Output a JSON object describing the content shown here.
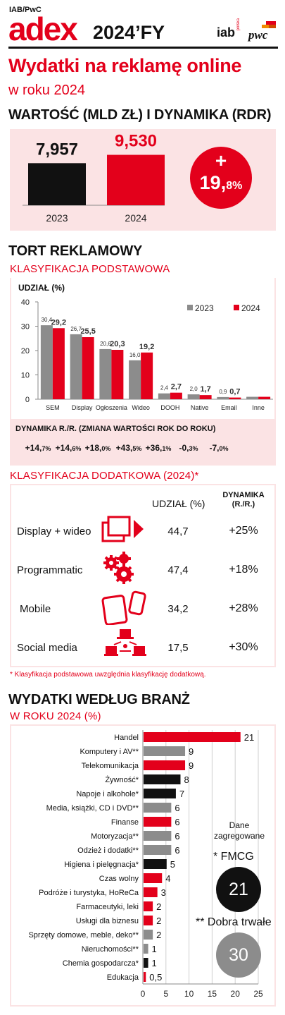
{
  "header": {
    "source": "IAB/PwC",
    "logo_a": "adex",
    "year": "2024’FY",
    "iab_logo": "iab",
    "iab_sub": "polska",
    "pwc_logo": "pwc"
  },
  "title": "Wydatki na reklamę online",
  "subtitle": "w roku 2024",
  "value_section": {
    "title": "WARTOŚĆ (MLD ZŁ) I DYNAMIKA (RDR)",
    "badge_plus": "+",
    "badge_int": "19,",
    "badge_dec": "8%"
  },
  "pie_section": {
    "title": "TORT REKLAMOWY",
    "subtitle": "KLASYFIKACJA PODSTAWOWA",
    "dyn_title": "DYNAMIKA R./R. (ZMIANA WARTOŚCI ROK DO ROKU)",
    "dynamics": [
      {
        "int": "+14,",
        "dec": "7%"
      },
      {
        "int": "+14,",
        "dec": "6%"
      },
      {
        "int": "+18,",
        "dec": "0%"
      },
      {
        "int": "+43,",
        "dec": "5%"
      },
      {
        "int": "+36,",
        "dec": "1%"
      },
      {
        "int": "-0,",
        "dec": "3%"
      },
      {
        "int": "-7,",
        "dec": "0%"
      }
    ]
  },
  "additional": {
    "title": "KLASYFIKACJA DODATKOWA (2024)*",
    "col_share": "UDZIAŁ (%)",
    "col_dyn_1": "DYNAMIKA",
    "col_dyn_2": "(R./R.)",
    "rows": [
      {
        "label": "Display + wideo",
        "share": "44,7",
        "dyn": "+25%",
        "icon": "display-video-icon"
      },
      {
        "label": "Programmatic",
        "share": "47,4",
        "dyn": "+18%",
        "icon": "gears-icon"
      },
      {
        "label": "Mobile",
        "share": "34,2",
        "dyn": "+28%",
        "icon": "mobile-devices-icon"
      },
      {
        "label": "Social media",
        "share": "17,5",
        "dyn": "+30%",
        "icon": "social-network-icon"
      }
    ],
    "footnote": "* Klasyfikacja podstawowa uwzględnia klasyfikację dodatkową."
  },
  "industry": {
    "title": "WYDATKI WEDŁUG BRANŻ",
    "subtitle": "W ROKU 2024 (%)",
    "agg_title_1": "Dane",
    "agg_title_2": "zagregowane",
    "fmcg_label": "* FMCG",
    "fmcg_value": "21",
    "durable_label": "** Dobra trwałe",
    "durable_value": "30"
  },
  "colors": {
    "red": "#e3001b",
    "black": "#111111",
    "grey": "#8c8c8c",
    "pink_bg": "#fbe3e4"
  },
  "chart_data": [
    {
      "type": "bar",
      "categories": [
        "2023",
        "2024"
      ],
      "values": [
        7.957,
        9.53
      ],
      "value_labels": [
        "7,957",
        "9,530"
      ],
      "colors": [
        "#111111",
        "#e3001b"
      ]
    },
    {
      "type": "bar",
      "title": "UDZIAŁ (%)",
      "categories": [
        "SEM",
        "Display",
        "Ogłoszenia",
        "Wideo",
        "DOOH",
        "Native",
        "Email",
        "Inne"
      ],
      "series": [
        {
          "name": "2023",
          "values": [
            30.4,
            26.7,
            20.6,
            16.0,
            2.4,
            2.0,
            0.9,
            1.0
          ],
          "labels": [
            "30,4",
            "26,7",
            "20,6",
            "16,0",
            "2,4",
            "2,0",
            "0,9",
            ""
          ]
        },
        {
          "name": "2024",
          "values": [
            29.2,
            25.5,
            20.3,
            19.2,
            2.7,
            1.7,
            0.7,
            1.0
          ],
          "labels": [
            "29,2",
            "25,5",
            "20,3",
            "19,2",
            "2,7",
            "1,7",
            "0,7",
            ""
          ]
        }
      ],
      "ylim": [
        0,
        40
      ],
      "yticks": [
        0,
        10,
        20,
        30,
        40
      ],
      "legend": "top-right",
      "grid": false
    },
    {
      "type": "bar",
      "orientation": "horizontal",
      "categories": [
        "Handel",
        "Komputery i AV**",
        "Telekomunikacja",
        "Żywność*",
        "Napoje i alkohole*",
        "Media, książki, CD i DVD**",
        "Finanse",
        "Motoryzacja**",
        "Odzież i dodatki**",
        "Higiena i pielęgnacja*",
        "Czas wolny",
        "Podróże i turystyka, HoReCa",
        "Farmaceutyki, leki",
        "Usługi dla biznesu",
        "Sprzęty domowe, meble, deko**",
        "Nieruchomości**",
        "Chemia gospodarcza*",
        "Edukacja"
      ],
      "values": [
        21,
        9,
        9,
        8,
        7,
        6,
        6,
        6,
        6,
        5,
        4,
        3,
        2,
        2,
        2,
        1,
        1,
        0.5
      ],
      "value_labels": [
        "21",
        "9",
        "9",
        "8",
        "7",
        "6",
        "6",
        "6",
        "6",
        "5",
        "4",
        "3",
        "2",
        "2",
        "2",
        "1",
        "1",
        "0,5"
      ],
      "colors": [
        "#e3001b",
        "#8c8c8c",
        "#e3001b",
        "#111111",
        "#111111",
        "#8c8c8c",
        "#e3001b",
        "#8c8c8c",
        "#8c8c8c",
        "#111111",
        "#e3001b",
        "#e3001b",
        "#e3001b",
        "#e3001b",
        "#8c8c8c",
        "#8c8c8c",
        "#111111",
        "#e3001b"
      ],
      "xlim": [
        0,
        25
      ],
      "xticks": [
        0,
        5,
        10,
        15,
        20,
        25
      ],
      "grid": true
    }
  ]
}
